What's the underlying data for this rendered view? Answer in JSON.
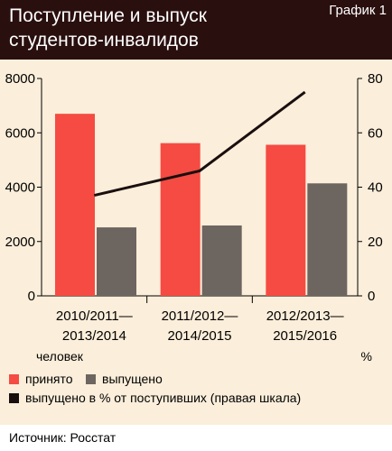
{
  "header": {
    "title_line1": "Поступление и выпуск",
    "title_line2": "студентов-инвалидов",
    "badge": "График 1"
  },
  "footer": {
    "source": "Источник: Росстат"
  },
  "chart_data": {
    "type": "bar",
    "categories": [
      [
        "2010/2011—",
        "2013/2014"
      ],
      [
        "2011/2012—",
        "2014/2015"
      ],
      [
        "2012/2013—",
        "2015/2016"
      ]
    ],
    "series": [
      {
        "name": "принято",
        "type": "bar",
        "axis": "left",
        "color": "#f54b42",
        "values": [
          6700,
          5620,
          5560
        ]
      },
      {
        "name": "выпущено",
        "type": "bar",
        "axis": "left",
        "color": "#6d6560",
        "values": [
          2520,
          2590,
          4140
        ]
      },
      {
        "name": "выпущено в % от поступивших (правая шкала)",
        "type": "line",
        "axis": "right",
        "color": "#1a0f0f",
        "values": [
          37,
          46,
          75
        ]
      }
    ],
    "ylim_left": [
      0,
      8000
    ],
    "yticks_left": [
      "0",
      "2000",
      "4000",
      "6000",
      "8000"
    ],
    "ylim_right": [
      0,
      80
    ],
    "yticks_right": [
      "0",
      "20",
      "40",
      "60",
      "80"
    ],
    "ylabel_left": "человек",
    "ylabel_right": "%",
    "grid": false,
    "legend_position": "bottom"
  }
}
